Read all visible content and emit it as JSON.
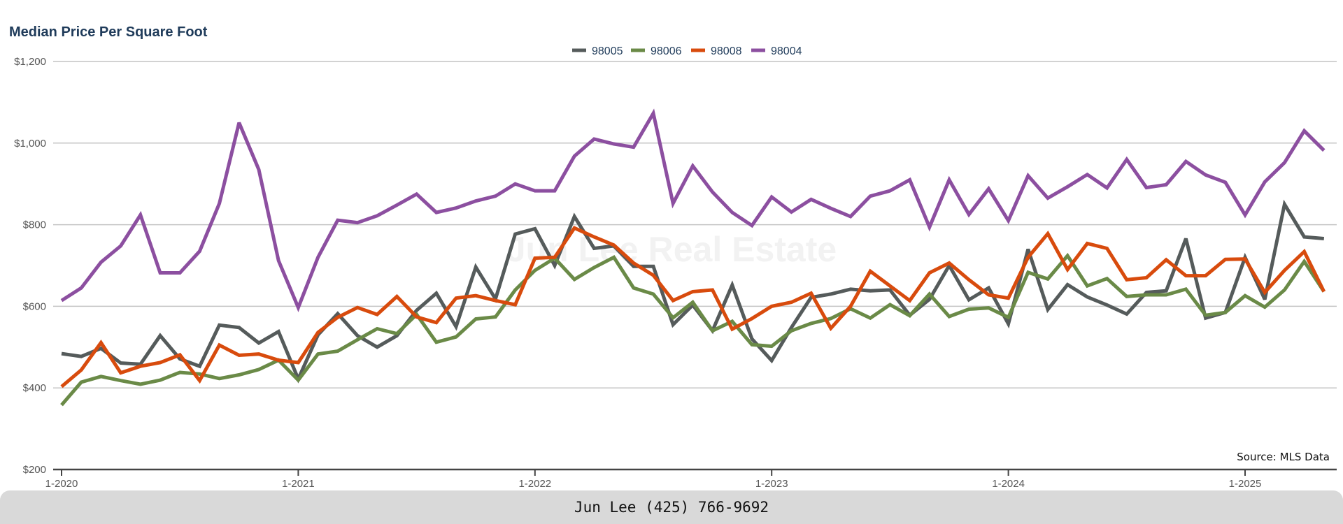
{
  "page": {
    "footer_text": "Jun Lee (425) 766-9692"
  },
  "chart_data": {
    "type": "line",
    "title": "Median Price Per Square Foot",
    "source_note": "Source: MLS Data",
    "watermark": "Jun Lee Real Estate",
    "ylim": [
      200,
      1200
    ],
    "y_ticks": [
      200,
      400,
      600,
      800,
      1000,
      1200
    ],
    "y_tick_labels": [
      "$200",
      "$400",
      "$600",
      "$800",
      "$1,000",
      "$1,200"
    ],
    "x_tick_labels": [
      "1-2020",
      "1-2021",
      "1-2022",
      "1-2023",
      "1-2024",
      "1-2025"
    ],
    "x_tick_index": [
      0,
      12,
      24,
      36,
      48,
      60
    ],
    "grid": true,
    "legend_position": "top-center",
    "months": [
      "2020-01",
      "2020-02",
      "2020-03",
      "2020-04",
      "2020-05",
      "2020-06",
      "2020-07",
      "2020-08",
      "2020-09",
      "2020-10",
      "2020-11",
      "2020-12",
      "2021-01",
      "2021-02",
      "2021-03",
      "2021-04",
      "2021-05",
      "2021-06",
      "2021-07",
      "2021-08",
      "2021-09",
      "2021-10",
      "2021-11",
      "2021-12",
      "2022-01",
      "2022-02",
      "2022-03",
      "2022-04",
      "2022-05",
      "2022-06",
      "2022-07",
      "2022-08",
      "2022-09",
      "2022-10",
      "2022-11",
      "2022-12",
      "2023-01",
      "2023-02",
      "2023-03",
      "2023-04",
      "2023-05",
      "2023-06",
      "2023-07",
      "2023-08",
      "2023-09",
      "2023-10",
      "2023-11",
      "2023-12",
      "2024-01",
      "2024-02",
      "2024-03",
      "2024-04",
      "2024-05",
      "2024-06",
      "2024-07",
      "2024-08",
      "2024-09",
      "2024-10",
      "2024-11",
      "2024-12",
      "2025-01",
      "2025-02",
      "2025-03",
      "2025-04",
      "2025-05"
    ],
    "series": [
      {
        "name": "98005",
        "color": "#555b5b",
        "values": [
          484,
          477,
          497,
          461,
          458,
          528,
          471,
          453,
          554,
          548,
          510,
          538,
          422,
          530,
          582,
          528,
          500,
          528,
          590,
          632,
          550,
          696,
          618,
          777,
          790,
          700,
          820,
          742,
          748,
          698,
          698,
          555,
          603,
          540,
          652,
          520,
          467,
          548,
          622,
          630,
          642,
          638,
          640,
          578,
          617,
          700,
          616,
          645,
          557,
          740,
          592,
          653,
          623,
          603,
          581,
          634,
          638,
          766,
          571,
          585,
          720,
          617,
          850,
          770,
          766
        ]
      },
      {
        "name": "98006",
        "color": "#6a8a47",
        "values": [
          358,
          414,
          428,
          418,
          409,
          419,
          438,
          434,
          423,
          432,
          445,
          468,
          419,
          483,
          490,
          518,
          545,
          533,
          580,
          512,
          525,
          569,
          574,
          640,
          688,
          718,
          666,
          695,
          720,
          645,
          630,
          572,
          610,
          540,
          563,
          506,
          502,
          540,
          558,
          570,
          594,
          571,
          604,
          577,
          630,
          575,
          593,
          596,
          573,
          683,
          667,
          724,
          650,
          668,
          624,
          628,
          628,
          642,
          578,
          585,
          626,
          598,
          640,
          710,
          636
        ]
      },
      {
        "name": "98008",
        "color": "#d84b0d",
        "values": [
          403,
          444,
          511,
          437,
          453,
          462,
          481,
          418,
          505,
          480,
          483,
          468,
          462,
          536,
          573,
          597,
          580,
          624,
          574,
          560,
          620,
          626,
          614,
          604,
          718,
          720,
          792,
          770,
          750,
          706,
          676,
          614,
          636,
          640,
          544,
          570,
          600,
          610,
          632,
          546,
          600,
          686,
          650,
          614,
          682,
          706,
          665,
          628,
          620,
          720,
          778,
          690,
          754,
          742,
          665,
          670,
          714,
          675,
          675,
          715,
          716,
          634,
          688,
          734,
          636
        ]
      },
      {
        "name": "98004",
        "color": "#8c4fa0",
        "values": [
          614,
          645,
          708,
          748,
          824,
          682,
          682,
          735,
          852,
          1050,
          935,
          712,
          597,
          720,
          811,
          805,
          822,
          848,
          875,
          830,
          841,
          858,
          870,
          900,
          883,
          883,
          968,
          1010,
          998,
          990,
          1073,
          852,
          944,
          880,
          830,
          798,
          868,
          831,
          862,
          840,
          820,
          870,
          883,
          910,
          794,
          910,
          825,
          888,
          810,
          920,
          865,
          893,
          923,
          890,
          960,
          891,
          898,
          955,
          922,
          904,
          824,
          905,
          952,
          1030,
          982
        ]
      }
    ]
  }
}
